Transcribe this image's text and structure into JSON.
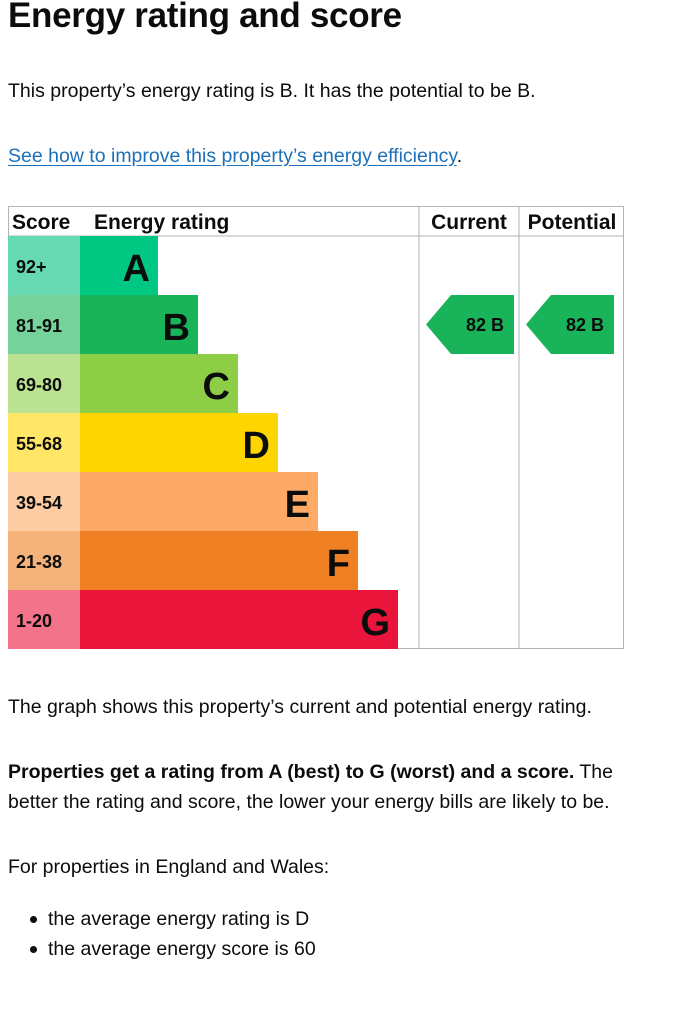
{
  "heading": "Energy rating and score",
  "intro": "This property’s energy rating is B. It has the potential to be B.",
  "improve_link": "See how to improve this property’s energy efficiency",
  "improve_link_suffix": ".",
  "chart_data": {
    "type": "bar",
    "headers": [
      "Score",
      "Energy rating",
      "Current",
      "Potential"
    ],
    "categories": [
      "A",
      "B",
      "C",
      "D",
      "E",
      "F",
      "G"
    ],
    "score_ranges": [
      "92+",
      "81-91",
      "69-80",
      "55-68",
      "39-54",
      "21-38",
      "1-20"
    ],
    "band_colors": [
      "#00c781",
      "#19b459",
      "#8dce46",
      "#ffd500",
      "#fcaa65",
      "#ef8023",
      "#e9153b"
    ],
    "score_colors": [
      "#66d9b3",
      "#75d29b",
      "#bbe290",
      "#ffe666",
      "#fdcca3",
      "#f5b37b",
      "#f2738a"
    ],
    "current": {
      "score": 82,
      "band": "B",
      "label": "82 B"
    },
    "potential": {
      "score": 82,
      "band": "B",
      "label": "82 B"
    }
  },
  "graph_caption": "The graph shows this property’s current and potential energy rating.",
  "rating_note_bold": "Properties get a rating from A (best) to G (worst) and a score.",
  "rating_note_rest": " The better the rating and score, the lower your energy bills are likely to be.",
  "averages_intro": "For properties in England and Wales:",
  "averages": [
    "the average energy rating is D",
    "the average energy score is 60"
  ]
}
